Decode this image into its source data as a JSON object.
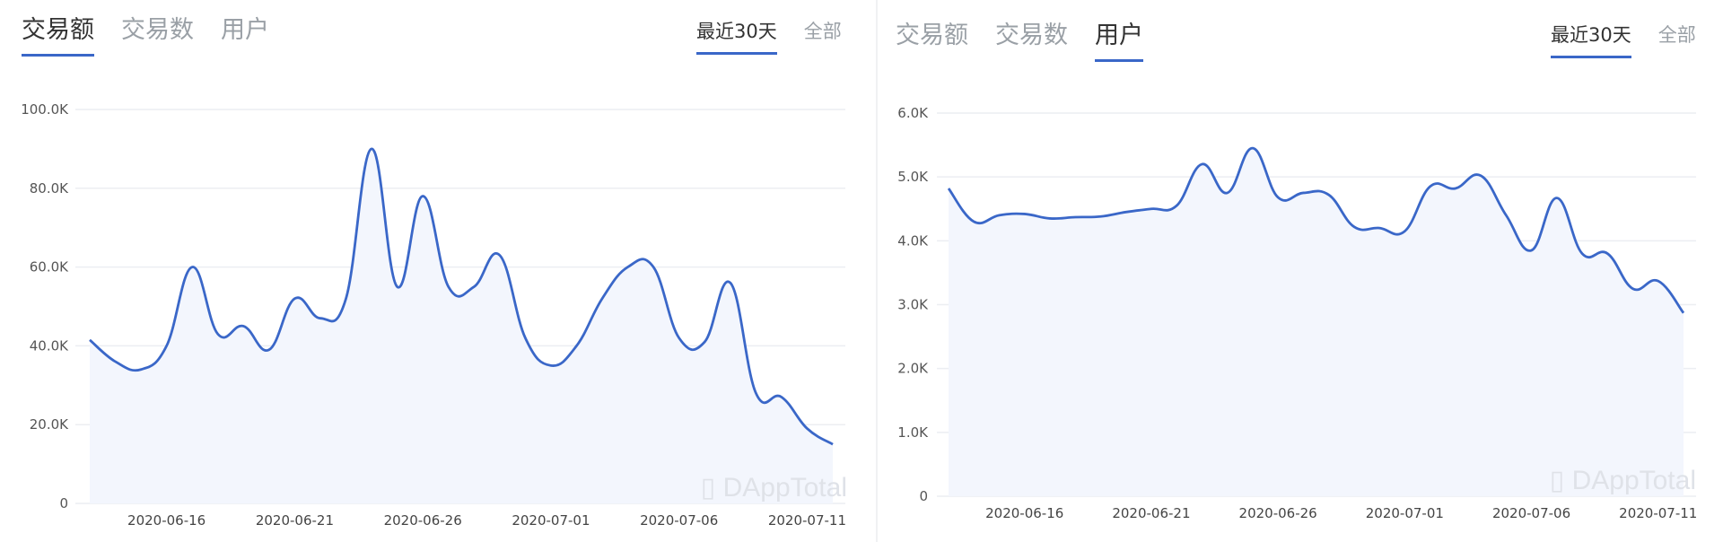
{
  "left_panel": {
    "tabs": [
      {
        "label": "交易额",
        "active": true
      },
      {
        "label": "交易数",
        "active": false
      },
      {
        "label": "用户",
        "active": false
      }
    ],
    "range_tabs": [
      {
        "label": "最近30天",
        "active": true
      },
      {
        "label": "全部",
        "active": false
      }
    ],
    "watermark": "DAppTotal"
  },
  "right_panel": {
    "tabs": [
      {
        "label": "交易额",
        "active": false
      },
      {
        "label": "交易数",
        "active": false
      },
      {
        "label": "用户",
        "active": true
      }
    ],
    "range_tabs": [
      {
        "label": "最近30天",
        "active": true
      },
      {
        "label": "全部",
        "active": false
      }
    ],
    "watermark": "DAppTotal"
  },
  "colors": {
    "line": "#3a67c8",
    "area": "#f3f6fd",
    "grid": "#eceef2",
    "active_tab_underline": "#3a67c8"
  },
  "chart_data": [
    {
      "type": "area",
      "title": "交易额",
      "xlabel": "",
      "ylabel": "",
      "ylim": [
        0,
        100000
      ],
      "yticks": [
        "0",
        "20.0K",
        "40.0K",
        "60.0K",
        "80.0K",
        "100.0K"
      ],
      "xticks": [
        "2020-06-16",
        "2020-06-21",
        "2020-06-26",
        "2020-07-01",
        "2020-07-06",
        "2020-07-11"
      ],
      "grid": true,
      "legend": "none",
      "x": [
        "2020-06-13",
        "2020-06-14",
        "2020-06-15",
        "2020-06-16",
        "2020-06-17",
        "2020-06-18",
        "2020-06-19",
        "2020-06-20",
        "2020-06-21",
        "2020-06-22",
        "2020-06-23",
        "2020-06-24",
        "2020-06-25",
        "2020-06-26",
        "2020-06-27",
        "2020-06-28",
        "2020-06-29",
        "2020-06-30",
        "2020-07-01",
        "2020-07-02",
        "2020-07-03",
        "2020-07-04",
        "2020-07-05",
        "2020-07-06",
        "2020-07-07",
        "2020-07-08",
        "2020-07-09",
        "2020-07-10",
        "2020-07-11",
        "2020-07-12"
      ],
      "series": [
        {
          "name": "交易额",
          "values": [
            41500,
            36000,
            34000,
            40000,
            60000,
            43000,
            45000,
            39000,
            52000,
            47000,
            52000,
            90000,
            55000,
            78000,
            55000,
            55000,
            63000,
            42000,
            35000,
            40000,
            52000,
            60000,
            60000,
            42000,
            41000,
            56000,
            28000,
            27000,
            19000,
            15000
          ]
        }
      ]
    },
    {
      "type": "area",
      "title": "用户",
      "xlabel": "",
      "ylabel": "",
      "ylim": [
        0,
        6000
      ],
      "yticks": [
        "0",
        "1.0K",
        "2.0K",
        "3.0K",
        "4.0K",
        "5.0K",
        "6.0K"
      ],
      "xticks": [
        "2020-06-16",
        "2020-06-21",
        "2020-06-26",
        "2020-07-01",
        "2020-07-06",
        "2020-07-11"
      ],
      "grid": true,
      "legend": "none",
      "x": [
        "2020-06-13",
        "2020-06-14",
        "2020-06-15",
        "2020-06-16",
        "2020-06-17",
        "2020-06-18",
        "2020-06-19",
        "2020-06-20",
        "2020-06-21",
        "2020-06-22",
        "2020-06-23",
        "2020-06-24",
        "2020-06-25",
        "2020-06-26",
        "2020-06-27",
        "2020-06-28",
        "2020-06-29",
        "2020-06-30",
        "2020-07-01",
        "2020-07-02",
        "2020-07-03",
        "2020-07-04",
        "2020-07-05",
        "2020-07-06",
        "2020-07-07",
        "2020-07-08",
        "2020-07-09",
        "2020-07-10",
        "2020-07-11",
        "2020-07-12"
      ],
      "series": [
        {
          "name": "用户",
          "values": [
            4820,
            4300,
            4400,
            4420,
            4350,
            4370,
            4380,
            4450,
            4500,
            4550,
            5200,
            4750,
            5450,
            4680,
            4750,
            4720,
            4220,
            4200,
            4150,
            4850,
            4820,
            5020,
            4400,
            3850,
            4670,
            3800,
            3800,
            3250,
            3370,
            2870
          ]
        }
      ]
    }
  ]
}
